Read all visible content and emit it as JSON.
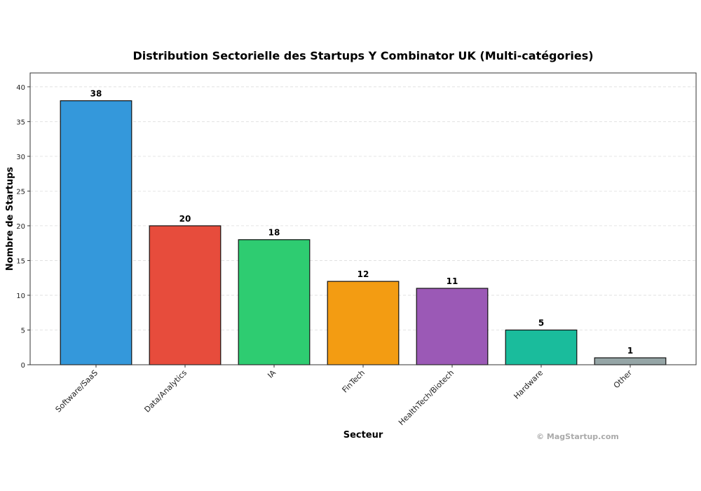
{
  "chart_data": {
    "type": "bar",
    "title": "Distribution Sectorielle des Startups Y Combinator UK (Multi-catégories)",
    "xlabel": "Secteur",
    "ylabel": "Nombre de Startups",
    "categories": [
      "Software/SaaS",
      "Data/Analytics",
      "IA",
      "FinTech",
      "HealthTech/Biotech",
      "Hardware",
      "Other"
    ],
    "values": [
      38,
      20,
      18,
      12,
      11,
      5,
      1
    ],
    "colors": [
      "#3498db",
      "#e74c3c",
      "#2ecc71",
      "#f39c12",
      "#9b59b6",
      "#1abc9c",
      "#95a5a6"
    ],
    "ylim": [
      0,
      42
    ],
    "yticks": [
      0,
      5,
      10,
      15,
      20,
      25,
      30,
      35,
      40
    ],
    "grid": "y-dashed",
    "data_labels": true
  },
  "watermark": "© MagStartup.com"
}
